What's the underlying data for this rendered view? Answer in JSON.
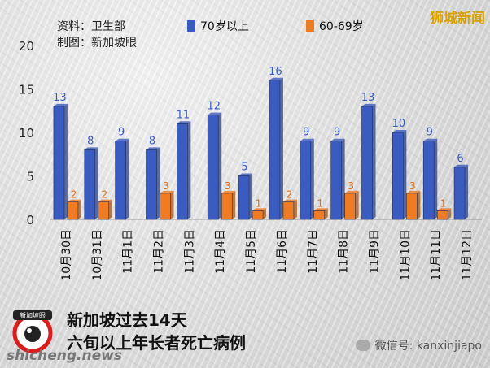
{
  "source": {
    "data_line": "资料：卫生部",
    "chart_line": "制图：新加坡眼"
  },
  "brand": "狮城新闻",
  "caption": {
    "line1": "新加坡过去14天",
    "line2": "六旬以上年长者死亡病例"
  },
  "logo_text": "新加坡眼",
  "watermark_site": "shicheng.news",
  "wechat": "微信号: kanxinjiapo",
  "colors": {
    "series_70": "#3a5bbf",
    "series_60": "#ef7c22",
    "label_70": "#3a5bbf",
    "label_60": "#e06c12"
  },
  "chart_data": {
    "type": "bar",
    "categories": [
      "10月30日",
      "10月31日",
      "11月1日",
      "11月2日",
      "11月3日",
      "11月4日",
      "11月5日",
      "11月6日",
      "11月7日",
      "11月8日",
      "11月9日",
      "11月10日",
      "11月11日",
      "11月12日"
    ],
    "series": [
      {
        "name": "70岁以上",
        "values": [
          13,
          8,
          9,
          8,
          11,
          12,
          5,
          16,
          9,
          9,
          13,
          10,
          9,
          6
        ]
      },
      {
        "name": "60-69岁",
        "values": [
          2,
          2,
          null,
          3,
          null,
          3,
          1,
          2,
          1,
          3,
          null,
          3,
          1,
          null
        ]
      }
    ],
    "ylim": [
      0,
      20
    ],
    "yticks": [
      0,
      5,
      10,
      15,
      20
    ],
    "legend_position": "top"
  }
}
